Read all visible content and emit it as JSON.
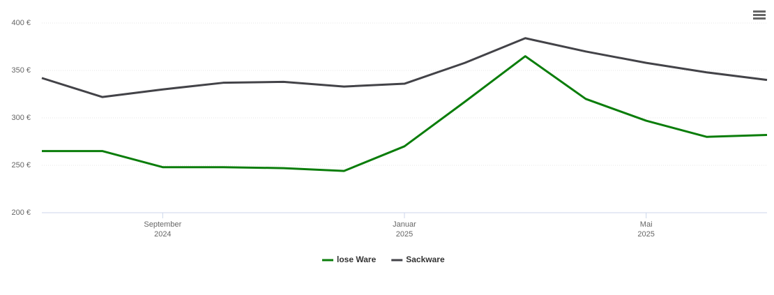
{
  "chart_data": {
    "type": "line",
    "x": [
      "2024-07",
      "2024-08",
      "2024-09",
      "2024-10",
      "2024-11",
      "2024-12",
      "2025-01",
      "2025-02",
      "2025-03",
      "2025-04",
      "2025-05",
      "2025-06",
      "2025-07"
    ],
    "series": [
      {
        "name": "lose Ware",
        "color": "#0a7d0a",
        "values": [
          265,
          265,
          248,
          248,
          247,
          244,
          270,
          317,
          365,
          320,
          297,
          280,
          282
        ]
      },
      {
        "name": "Sackware",
        "color": "#434348",
        "values": [
          342,
          322,
          330,
          337,
          338,
          333,
          336,
          358,
          384,
          370,
          358,
          348,
          340
        ]
      }
    ],
    "xlim": [
      "2024-07",
      "2025-07"
    ],
    "xticks": [
      {
        "value": "2024-09",
        "label": [
          "September",
          "2024"
        ]
      },
      {
        "value": "2025-01",
        "label": [
          "Januar",
          "2025"
        ]
      },
      {
        "value": "2025-05",
        "label": [
          "Mai",
          "2025"
        ]
      }
    ],
    "ylim": [
      200,
      400
    ],
    "yticks": [
      {
        "value": 200,
        "label": "200 €"
      },
      {
        "value": 250,
        "label": "250 €"
      },
      {
        "value": 300,
        "label": "300 €"
      },
      {
        "value": 350,
        "label": "350 €"
      },
      {
        "value": 400,
        "label": "400 €"
      }
    ],
    "grid": true,
    "legend": "bottom"
  }
}
